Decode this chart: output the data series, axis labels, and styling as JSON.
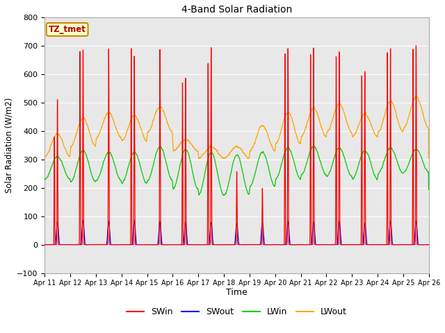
{
  "title": "4-Band Solar Radiation",
  "xlabel": "Time",
  "ylabel": "Solar Radiation (W/m2)",
  "ylim": [
    -100,
    800
  ],
  "n_days": 15,
  "x_tick_labels": [
    "Apr 11",
    "Apr 12",
    "Apr 13",
    "Apr 14",
    "Apr 15",
    "Apr 16",
    "Apr 17",
    "Apr 18",
    "Apr 19",
    "Apr 20",
    "Apr 21",
    "Apr 22",
    "Apr 23",
    "Apr 24",
    "Apr 25",
    "Apr 26"
  ],
  "colors": {
    "SWin": "#ff0000",
    "SWout": "#0000ff",
    "LWin": "#00cc00",
    "LWout": "#ffa500"
  },
  "label_box": {
    "text": "TZ_tmet",
    "facecolor": "#ffffcc",
    "edgecolor": "#cc8800"
  },
  "background_color": "#e8e8e8",
  "fig_background": "#ffffff",
  "grid_color": "#ffffff",
  "yticks": [
    -100,
    0,
    100,
    200,
    300,
    400,
    500,
    600,
    700,
    800
  ],
  "SWin_peaks": [
    510,
    685,
    690,
    665,
    690,
    590,
    700,
    260,
    200,
    695,
    695,
    680,
    610,
    690,
    700
  ],
  "SWin_double": [
    1,
    1,
    0,
    1,
    0,
    1,
    1,
    1,
    1,
    1,
    1,
    1,
    1,
    1,
    1
  ],
  "SWin_peak2": [
    380,
    680,
    0,
    690,
    0,
    570,
    640,
    0,
    0,
    680,
    680,
    670,
    600,
    680,
    690
  ],
  "LWout_base": [
    350,
    395,
    420,
    410,
    440,
    350,
    325,
    325,
    375,
    410,
    430,
    445,
    420,
    450,
    465
  ],
  "LWout_daytime_bump": [
    40,
    50,
    45,
    45,
    45,
    20,
    20,
    20,
    45,
    55,
    50,
    50,
    40,
    55,
    55
  ],
  "LWin_base": [
    270,
    275,
    275,
    270,
    285,
    265,
    250,
    245,
    265,
    285,
    295,
    290,
    280,
    295,
    295
  ],
  "LWin_range": [
    40,
    55,
    50,
    55,
    60,
    70,
    75,
    70,
    60,
    55,
    50,
    50,
    50,
    45,
    40
  ],
  "SWout_peak": [
    80,
    85,
    82,
    85,
    82,
    80,
    78,
    75,
    78,
    82,
    82,
    82,
    75,
    82,
    82
  ]
}
